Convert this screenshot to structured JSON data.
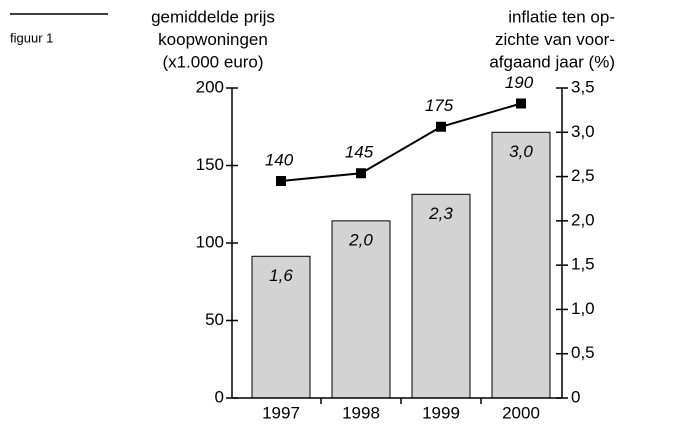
{
  "label": "figuur 1",
  "chart_data": {
    "type": "combo",
    "y_label": [
      "gemiddelde prijs",
      "koopwoningen",
      "(x1.000 euro)"
    ],
    "y2_label": [
      "inflatie ten op-",
      "zichte van voor-",
      "afgaand jaar (%)"
    ],
    "categories": [
      "1997",
      "1998",
      "1999",
      "2000"
    ],
    "series": [
      {
        "type": "bar",
        "axis": "y2",
        "color": "#d3d3d3",
        "values": [
          1.6,
          2.0,
          2.3,
          3.0
        ],
        "value_labels": [
          "1,6",
          "2,0",
          "2,3",
          "3,0"
        ]
      },
      {
        "type": "line",
        "color": "#000000",
        "values": [
          140,
          145,
          175,
          190
        ]
      }
    ],
    "ylim": [
      0,
      200
    ],
    "yticks": [
      0,
      50,
      100,
      150,
      200
    ],
    "y2lim": [
      0,
      3.5
    ],
    "y2ticks": [
      0,
      {
        "value": 0.5,
        "label": "0,5"
      },
      {
        "value": 1.0,
        "label": "1,0"
      },
      {
        "value": 1.5,
        "label": "1,5"
      },
      {
        "value": 2.0,
        "label": "2,0"
      },
      {
        "value": 2.5,
        "label": "2,5"
      },
      {
        "value": 3.0,
        "label": "3,0"
      },
      {
        "value": 3.5,
        "label": "3,5"
      }
    ]
  }
}
